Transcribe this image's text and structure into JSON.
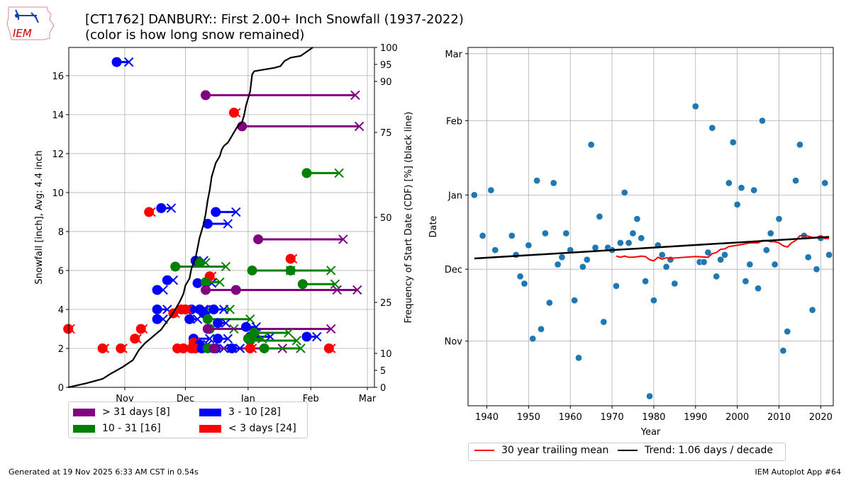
{
  "header": {
    "logo_text": "IEM",
    "title_line1": "[CT1762] DANBURY:: First 2.00+ Inch Snowfall (1937-2022)",
    "title_line2": "(color is how long snow remained)"
  },
  "footer": {
    "generated": "Generated at 19 Nov 2025 6:33 AM CST in 0.54s",
    "app": "IEM Autoplot App #64"
  },
  "colors": {
    "gt31": "#800080",
    "d10_31": "#008000",
    "d3_10": "#0000ff",
    "lt3": "#ff0000",
    "scatter": "#1f77b4",
    "trailing": "#ff0000",
    "trend": "#000000",
    "grid": "#b0b0b0"
  },
  "chart_data": [
    {
      "type": "scatter",
      "name": "first-snowfall-duration",
      "xlabel": "",
      "ylabel": "Snowfall [inch], Avg: 4.4 inch",
      "y2label": "Frequency of Start Date (CDF) [%] (black line)",
      "x_unit": "days since Oct 1",
      "xlim": [
        3.3,
        154.5
      ],
      "ylim": [
        0,
        17.45
      ],
      "y2lim": [
        0,
        100
      ],
      "xticks": [
        {
          "v": 31,
          "label": "Nov"
        },
        {
          "v": 61,
          "label": "Dec"
        },
        {
          "v": 92,
          "label": "Jan"
        },
        {
          "v": 123,
          "label": "Feb"
        },
        {
          "v": 151,
          "label": "Mar"
        }
      ],
      "yticks": [
        0,
        2,
        4,
        6,
        8,
        10,
        12,
        14,
        16
      ],
      "y2ticks": [
        0,
        5,
        10,
        25,
        50,
        75,
        90,
        95,
        100
      ],
      "grid": true,
      "legend": {
        "position": "below-left",
        "entries": [
          {
            "key": "gt31",
            "label": "> 31 days [8]"
          },
          {
            "key": "d3_10",
            "label": "3 - 10 [28]"
          },
          {
            "key": "d10_31",
            "label": "10 - 31 [16]"
          },
          {
            "key": "lt3",
            "label": "< 3 days [24]"
          }
        ]
      },
      "events": [
        {
          "start": 27,
          "end": 33,
          "snow": 16.7,
          "cat": "d3_10"
        },
        {
          "start": 71,
          "end": 145,
          "snow": 15.0,
          "cat": "gt31"
        },
        {
          "start": 85,
          "end": 86,
          "snow": 14.1,
          "cat": "lt3"
        },
        {
          "start": 89,
          "end": 147,
          "snow": 13.4,
          "cat": "gt31"
        },
        {
          "start": 121,
          "end": 137,
          "snow": 11.0,
          "cat": "d10_31"
        },
        {
          "start": 43,
          "end": 44,
          "snow": 9.0,
          "cat": "lt3"
        },
        {
          "start": 49,
          "end": 54,
          "snow": 9.2,
          "cat": "d3_10"
        },
        {
          "start": 76,
          "end": 86,
          "snow": 9.0,
          "cat": "d3_10"
        },
        {
          "start": 72,
          "end": 82,
          "snow": 8.4,
          "cat": "d3_10"
        },
        {
          "start": 97,
          "end": 139,
          "snow": 7.6,
          "cat": "gt31"
        },
        {
          "start": 113,
          "end": 114,
          "snow": 6.6,
          "cat": "lt3"
        },
        {
          "start": 66,
          "end": 70,
          "snow": 6.5,
          "cat": "d3_10"
        },
        {
          "start": 56,
          "end": 81,
          "snow": 6.2,
          "cat": "d10_31"
        },
        {
          "start": 68,
          "end": 71,
          "snow": 6.4,
          "cat": "d10_31"
        },
        {
          "start": 94,
          "end": 113,
          "snow": 6.0,
          "cat": "d10_31"
        },
        {
          "start": 113,
          "end": 133,
          "snow": 6.0,
          "cat": "d10_31"
        },
        {
          "start": 73,
          "end": 74,
          "snow": 5.7,
          "cat": "lt3"
        },
        {
          "start": 52,
          "end": 55,
          "snow": 5.5,
          "cat": "d3_10"
        },
        {
          "start": 67,
          "end": 74,
          "snow": 5.35,
          "cat": "d3_10"
        },
        {
          "start": 71,
          "end": 78,
          "snow": 5.4,
          "cat": "d10_31"
        },
        {
          "start": 119,
          "end": 135,
          "snow": 5.3,
          "cat": "d10_31"
        },
        {
          "start": 47,
          "end": 50,
          "snow": 5.0,
          "cat": "d3_10"
        },
        {
          "start": 71,
          "end": 136,
          "snow": 5.0,
          "cat": "gt31"
        },
        {
          "start": 86,
          "end": 146,
          "snow": 5.0,
          "cat": "gt31"
        },
        {
          "start": 47,
          "end": 52,
          "snow": 4.0,
          "cat": "d3_10"
        },
        {
          "start": 59,
          "end": 60,
          "snow": 4.0,
          "cat": "lt3"
        },
        {
          "start": 61,
          "end": 83,
          "snow": 4.0,
          "cat": "d10_31"
        },
        {
          "start": 64,
          "end": 70,
          "snow": 4.0,
          "cat": "d3_10"
        },
        {
          "start": 68,
          "end": 71,
          "snow": 4.0,
          "cat": "d3_10"
        },
        {
          "start": 75,
          "end": 80,
          "snow": 4.0,
          "cat": "d3_10"
        },
        {
          "start": 55,
          "end": 56,
          "snow": 3.8,
          "cat": "lt3"
        },
        {
          "start": 61,
          "end": 62,
          "snow": 4.0,
          "cat": "lt3"
        },
        {
          "start": 47,
          "end": 50,
          "snow": 3.5,
          "cat": "d3_10"
        },
        {
          "start": 63,
          "end": 67,
          "snow": 3.5,
          "cat": "d3_10"
        },
        {
          "start": 70,
          "end": 72,
          "snow": 3.8,
          "cat": "d3_10"
        },
        {
          "start": 72,
          "end": 93,
          "snow": 3.5,
          "cat": "d10_31"
        },
        {
          "start": 77,
          "end": 81,
          "snow": 3.3,
          "cat": "d3_10"
        },
        {
          "start": 73,
          "end": 85,
          "snow": 3.0,
          "cat": "d10_31"
        },
        {
          "start": 72,
          "end": 133,
          "snow": 3.0,
          "cat": "gt31"
        },
        {
          "start": 91,
          "end": 96,
          "snow": 3.1,
          "cat": "d3_10"
        },
        {
          "start": 3,
          "end": 4,
          "snow": 3.0,
          "cat": "lt3"
        },
        {
          "start": 39,
          "end": 40,
          "snow": 3.0,
          "cat": "lt3"
        },
        {
          "start": 36,
          "end": 37,
          "snow": 2.5,
          "cat": "lt3"
        },
        {
          "start": 65,
          "end": 73,
          "snow": 2.5,
          "cat": "d3_10"
        },
        {
          "start": 77,
          "end": 82,
          "snow": 2.5,
          "cat": "d3_10"
        },
        {
          "start": 93,
          "end": 103,
          "snow": 2.6,
          "cat": "d3_10"
        },
        {
          "start": 95,
          "end": 112,
          "snow": 2.8,
          "cat": "d10_31"
        },
        {
          "start": 121,
          "end": 126,
          "snow": 2.6,
          "cat": "d3_10"
        },
        {
          "start": 92,
          "end": 99,
          "snow": 2.5,
          "cat": "d10_31"
        },
        {
          "start": 93,
          "end": 116,
          "snow": 2.4,
          "cat": "d10_31"
        },
        {
          "start": 65,
          "end": 66,
          "snow": 2.3,
          "cat": "lt3"
        },
        {
          "start": 68,
          "end": 72,
          "snow": 2.2,
          "cat": "d3_10"
        },
        {
          "start": 20,
          "end": 21,
          "snow": 2.0,
          "cat": "lt3"
        },
        {
          "start": 29,
          "end": 30,
          "snow": 2.0,
          "cat": "lt3"
        },
        {
          "start": 57,
          "end": 58,
          "snow": 2.0,
          "cat": "lt3"
        },
        {
          "start": 60,
          "end": 61,
          "snow": 2.0,
          "cat": "lt3"
        },
        {
          "start": 64,
          "end": 65,
          "snow": 2.0,
          "cat": "lt3"
        },
        {
          "start": 66,
          "end": 67,
          "snow": 2.0,
          "cat": "lt3"
        },
        {
          "start": 69,
          "end": 72,
          "snow": 2.0,
          "cat": "d3_10"
        },
        {
          "start": 72,
          "end": 84,
          "snow": 2.0,
          "cat": "d10_31"
        },
        {
          "start": 76,
          "end": 80,
          "snow": 2.0,
          "cat": "d3_10"
        },
        {
          "start": 75,
          "end": 109,
          "snow": 2.0,
          "cat": "gt31"
        },
        {
          "start": 84,
          "end": 88,
          "snow": 2.0,
          "cat": "d3_10"
        },
        {
          "start": 93,
          "end": 94,
          "snow": 2.0,
          "cat": "lt3"
        },
        {
          "start": 100,
          "end": 118,
          "snow": 2.0,
          "cat": "d10_31"
        },
        {
          "start": 132,
          "end": 133,
          "snow": 2.0,
          "cat": "lt3"
        }
      ],
      "cdf": {
        "label": "black line",
        "x": [
          3,
          12,
          20,
          24,
          30,
          35,
          38,
          41,
          45,
          49,
          52,
          54,
          56,
          58,
          60,
          61,
          63,
          64,
          66,
          67,
          68,
          70,
          71,
          72,
          73,
          74,
          75,
          76,
          78,
          79,
          80,
          82,
          84,
          86,
          87,
          89,
          90,
          91,
          93,
          94,
          95,
          100,
          105,
          108,
          110,
          113,
          118,
          124
        ],
        "y": [
          0,
          1.2,
          2.5,
          4,
          6,
          8,
          11,
          13,
          15,
          17,
          19.5,
          21,
          23,
          25,
          27.5,
          30,
          32,
          35,
          38,
          41,
          44,
          48,
          51,
          55,
          58,
          62,
          64,
          66,
          68,
          70,
          71,
          72,
          74,
          76,
          77,
          78,
          80,
          83,
          87,
          92,
          93,
          93.5,
          94,
          94.5,
          96,
          97,
          97.5,
          100
        ]
      }
    },
    {
      "type": "scatter",
      "name": "first-snowfall-date-by-year",
      "xlabel": "Year",
      "ylabel": "Date",
      "y_unit": "days since Oct 1",
      "xlim": [
        1935.5,
        2023
      ],
      "ylim": [
        4,
        153.6
      ],
      "xticks": [
        1940,
        1950,
        1960,
        1970,
        1980,
        1990,
        2000,
        2010,
        2020
      ],
      "yticks": [
        {
          "v": 31,
          "label": "Nov"
        },
        {
          "v": 61,
          "label": "Dec"
        },
        {
          "v": 92,
          "label": "Jan"
        },
        {
          "v": 123,
          "label": "Feb"
        },
        {
          "v": 151,
          "label": "Mar"
        }
      ],
      "grid": true,
      "legend": {
        "position": "below",
        "entries": [
          {
            "key": "trailing",
            "label": "30 year trailing mean"
          },
          {
            "key": "trend",
            "label": "Trend: 1.06 days / decade"
          }
        ]
      },
      "points": [
        [
          1937,
          92
        ],
        [
          1939,
          75
        ],
        [
          1941,
          94
        ],
        [
          1942,
          69
        ],
        [
          1946,
          75
        ],
        [
          1947,
          67
        ],
        [
          1948,
          58
        ],
        [
          1949,
          55
        ],
        [
          1950,
          71
        ],
        [
          1951,
          32
        ],
        [
          1953,
          36
        ],
        [
          1952,
          98
        ],
        [
          1954,
          76
        ],
        [
          1955,
          47
        ],
        [
          1956,
          97
        ],
        [
          1957,
          63
        ],
        [
          1958,
          66
        ],
        [
          1959,
          76
        ],
        [
          1960,
          69
        ],
        [
          1961,
          48
        ],
        [
          1962,
          24
        ],
        [
          1963,
          62
        ],
        [
          1964,
          65
        ],
        [
          1965,
          113
        ],
        [
          1966,
          70
        ],
        [
          1967,
          83
        ],
        [
          1968,
          39
        ],
        [
          1969,
          70
        ],
        [
          1970,
          69
        ],
        [
          1971,
          54
        ],
        [
          1972,
          72
        ],
        [
          1973,
          93
        ],
        [
          1974,
          72
        ],
        [
          1975,
          76
        ],
        [
          1976,
          82
        ],
        [
          1977,
          74
        ],
        [
          1978,
          56
        ],
        [
          1979,
          8
        ],
        [
          1980,
          48
        ],
        [
          1981,
          71
        ],
        [
          1982,
          67
        ],
        [
          1983,
          62
        ],
        [
          1984,
          65
        ],
        [
          1985,
          55
        ],
        [
          1990,
          129
        ],
        [
          1991,
          64
        ],
        [
          1992,
          64
        ],
        [
          1993,
          68
        ],
        [
          1994,
          120
        ],
        [
          1995,
          58
        ],
        [
          1996,
          65
        ],
        [
          1997,
          67
        ],
        [
          1998,
          97
        ],
        [
          1999,
          114
        ],
        [
          2000,
          88
        ],
        [
          2001,
          95
        ],
        [
          2002,
          56
        ],
        [
          2003,
          63
        ],
        [
          2004,
          94
        ],
        [
          2005,
          53
        ],
        [
          2006,
          123
        ],
        [
          2007,
          69
        ],
        [
          2008,
          76
        ],
        [
          2009,
          63
        ],
        [
          2010,
          82
        ],
        [
          2011,
          27
        ],
        [
          2012,
          35
        ],
        [
          2014,
          98
        ],
        [
          2015,
          113
        ],
        [
          2016,
          75
        ],
        [
          2017,
          66
        ],
        [
          2018,
          44
        ],
        [
          2019,
          61
        ],
        [
          2020,
          74
        ],
        [
          2021,
          97
        ],
        [
          2022,
          67
        ]
      ],
      "trailing_mean": {
        "x": [
          1971,
          1972,
          1973,
          1974,
          1975,
          1976,
          1977,
          1978,
          1979,
          1980,
          1981,
          1982,
          1983,
          1984,
          1985,
          1990,
          1993,
          1994,
          1995,
          1996,
          1997,
          1998,
          2000,
          2003,
          2005,
          2006,
          2007,
          2008,
          2009,
          2010,
          2011,
          2012,
          2013,
          2014,
          2015,
          2016,
          2017,
          2018,
          2019,
          2020,
          2021,
          2022
        ],
        "y": [
          66.5,
          66,
          66.5,
          66,
          66,
          66.2,
          66.5,
          66.3,
          65,
          64.5,
          66,
          65.2,
          65.8,
          65.5,
          65.7,
          66.3,
          66,
          67.5,
          68,
          69.3,
          69.5,
          70.5,
          71,
          72,
          72,
          73,
          73,
          72.5,
          72.5,
          72,
          70.8,
          70.3,
          72,
          73,
          75,
          75,
          74.8,
          74.3,
          74.3,
          75,
          73.8,
          73.9
        ]
      },
      "trend": {
        "x": [
          1937,
          2022
        ],
        "y": [
          65.5,
          74.5
        ],
        "slope_days_per_decade": 1.06
      }
    }
  ]
}
